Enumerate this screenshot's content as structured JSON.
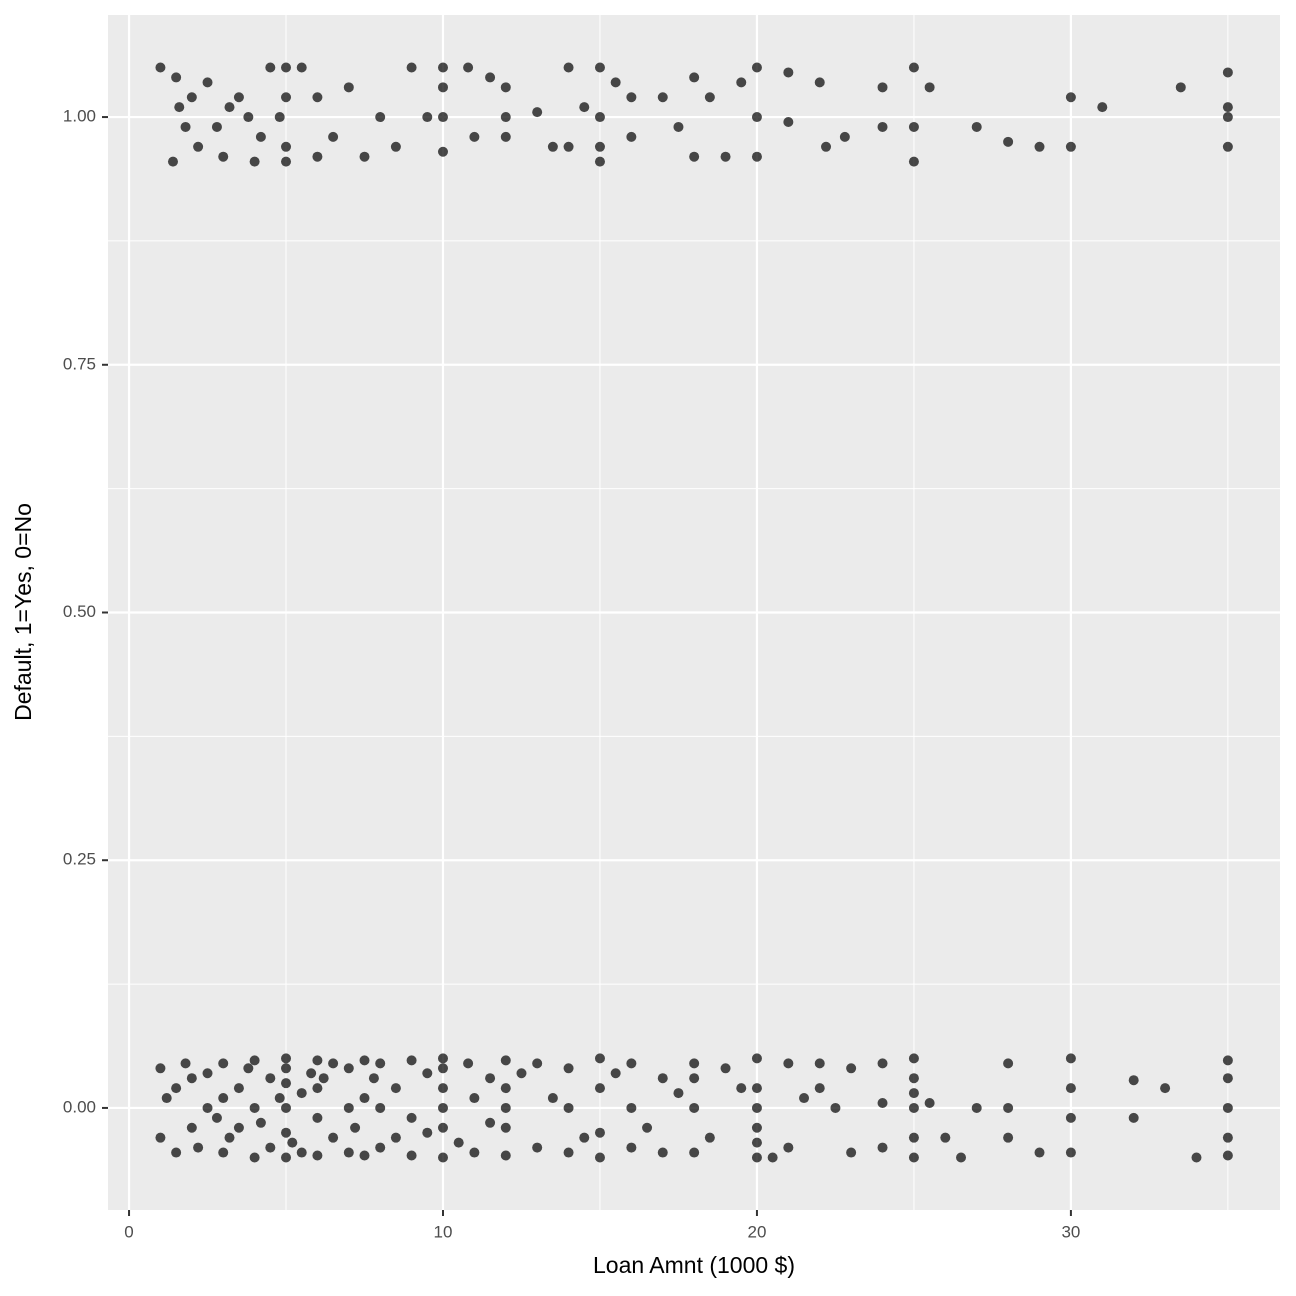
{
  "chart_data": {
    "type": "scatter",
    "x_label": "Loan Amnt (1000 $)",
    "y_label": "Default, 1=Yes, 0=No",
    "color": "#000000",
    "opacity": 0.7,
    "grid": true,
    "xlim": [
      -0.67,
      36.66
    ],
    "ylim": [
      -0.103,
      1.103
    ],
    "xticks": [
      0,
      10,
      20,
      30
    ],
    "yticks": [
      {
        "value": 0,
        "label": "0.00"
      },
      {
        "value": 0.25,
        "label": "0.25"
      },
      {
        "value": 0.5,
        "label": "0.50"
      },
      {
        "value": 0.75,
        "label": "0.75"
      },
      {
        "value": 1,
        "label": "1.00"
      }
    ],
    "xminor": [
      5,
      15,
      25,
      35
    ],
    "yminor": [
      0.125,
      0.375,
      0.625,
      0.875
    ],
    "x": [
      1,
      1.5,
      1.4,
      1.6,
      1.8,
      2,
      2.2,
      2.5,
      2.8,
      3,
      3.2,
      3.5,
      3.8,
      4,
      4.2,
      4.5,
      4.8,
      5,
      5,
      5,
      5,
      5.5,
      6,
      6,
      6.5,
      7,
      7.5,
      8,
      8.5,
      9,
      9.5,
      10,
      10,
      10,
      10,
      10.8,
      11,
      11.5,
      12,
      12,
      12,
      13,
      13.5,
      14,
      14,
      14.5,
      15,
      15,
      15,
      15,
      15.5,
      16,
      16,
      17,
      17.5,
      18,
      18,
      18.5,
      19,
      19.5,
      20,
      20,
      20,
      21,
      21,
      22,
      22.2,
      22.8,
      24,
      24,
      25,
      25,
      25,
      25.5,
      27,
      28,
      29,
      30,
      30,
      31,
      33.5,
      35,
      35,
      35,
      35,
      1,
      1,
      1.2,
      1.5,
      1.5,
      1.8,
      2,
      2,
      2.2,
      2.5,
      2.5,
      2.8,
      3,
      3,
      3,
      3.2,
      3.5,
      3.5,
      3.8,
      4,
      4,
      4,
      4.2,
      4.5,
      4.5,
      4.8,
      5,
      5,
      5,
      5,
      5,
      5,
      5.2,
      5.5,
      5.5,
      5.8,
      6,
      6,
      6,
      6,
      6.2,
      6.5,
      6.5,
      7,
      7,
      7,
      7.2,
      7.5,
      7.5,
      7.5,
      7.8,
      8,
      8,
      8,
      8.5,
      8.5,
      9,
      9,
      9,
      9.5,
      9.5,
      10,
      10,
      10,
      10,
      10,
      10,
      10.5,
      10.8,
      11,
      11,
      11.5,
      11.5,
      12,
      12,
      12,
      12,
      12,
      12.5,
      13,
      13,
      13.5,
      14,
      14,
      14,
      14.5,
      15,
      15,
      15,
      15,
      15.5,
      16,
      16,
      16,
      16.5,
      17,
      17,
      17.5,
      18,
      18,
      18,
      18,
      18.5,
      19,
      19.5,
      20,
      20,
      20,
      20,
      20,
      20,
      20.5,
      21,
      21,
      21.5,
      22,
      22,
      22.5,
      23,
      23,
      24,
      24,
      24,
      25,
      25,
      25,
      25,
      25,
      25,
      25.5,
      26,
      26.5,
      27,
      28,
      28,
      28,
      29,
      30,
      30,
      30,
      30,
      32,
      32,
      33,
      34,
      35,
      35,
      35,
      35,
      35
    ],
    "values": [
      1.05,
      1.04,
      0.955,
      1.01,
      0.99,
      1.02,
      0.97,
      1.035,
      0.99,
      0.96,
      1.01,
      1.02,
      1.0,
      0.955,
      0.98,
      1.05,
      1.0,
      1.05,
      0.97,
      1.02,
      0.955,
      1.05,
      0.96,
      1.02,
      0.98,
      1.03,
      0.96,
      1.0,
      0.97,
      1.05,
      1.0,
      0.965,
      1.05,
      1.0,
      1.03,
      1.05,
      0.98,
      1.04,
      1.0,
      0.98,
      1.03,
      1.005,
      0.97,
      1.05,
      0.97,
      1.01,
      0.955,
      1.05,
      1.0,
      0.97,
      1.035,
      0.98,
      1.02,
      1.02,
      0.99,
      1.04,
      0.96,
      1.02,
      0.96,
      1.035,
      1.05,
      1.0,
      0.96,
      1.045,
      0.995,
      1.035,
      0.97,
      0.98,
      1.03,
      0.99,
      1.05,
      0.955,
      0.99,
      1.03,
      0.99,
      0.975,
      0.97,
      1.02,
      0.97,
      1.01,
      1.03,
      1.045,
      1.0,
      0.97,
      1.01,
      0.04,
      -0.03,
      0.01,
      -0.045,
      0.02,
      0.045,
      -0.02,
      0.03,
      -0.04,
      0.0,
      0.035,
      -0.01,
      0.045,
      -0.045,
      0.01,
      -0.03,
      0.02,
      -0.02,
      0.04,
      -0.05,
      0.0,
      0.048,
      -0.015,
      0.03,
      -0.04,
      0.01,
      0.05,
      -0.05,
      0.025,
      -0.025,
      0.0,
      0.04,
      -0.035,
      0.015,
      -0.045,
      0.035,
      0.048,
      -0.048,
      0.02,
      -0.01,
      0.03,
      -0.03,
      0.045,
      0.0,
      -0.045,
      0.04,
      -0.02,
      0.048,
      -0.048,
      0.01,
      0.03,
      -0.04,
      0.045,
      0.0,
      0.02,
      -0.03,
      0.048,
      -0.048,
      -0.01,
      0.035,
      -0.025,
      0.05,
      -0.05,
      0.02,
      -0.02,
      0.0,
      0.04,
      -0.035,
      0.045,
      0.01,
      -0.045,
      0.03,
      -0.015,
      0.048,
      -0.048,
      0.02,
      -0.02,
      0.0,
      0.035,
      0.045,
      -0.04,
      0.01,
      0.04,
      -0.045,
      0.0,
      -0.03,
      0.05,
      -0.05,
      0.02,
      -0.025,
      0.035,
      0.045,
      -0.04,
      0.0,
      -0.02,
      0.03,
      -0.045,
      0.015,
      0.045,
      -0.045,
      0.0,
      0.03,
      -0.03,
      0.04,
      0.02,
      0.05,
      -0.05,
      0.02,
      -0.02,
      0.0,
      -0.035,
      -0.05,
      0.045,
      -0.04,
      0.01,
      0.045,
      0.02,
      0.0,
      -0.045,
      0.04,
      0.045,
      -0.04,
      0.005,
      0.05,
      -0.05,
      0.03,
      -0.03,
      0.0,
      0.015,
      0.005,
      -0.03,
      -0.05,
      0.0,
      0.045,
      0.0,
      -0.03,
      -0.045,
      0.05,
      0.02,
      -0.01,
      -0.045,
      0.028,
      -0.01,
      0.02,
      -0.05,
      0.048,
      0.03,
      0.0,
      -0.03,
      -0.048
    ]
  }
}
